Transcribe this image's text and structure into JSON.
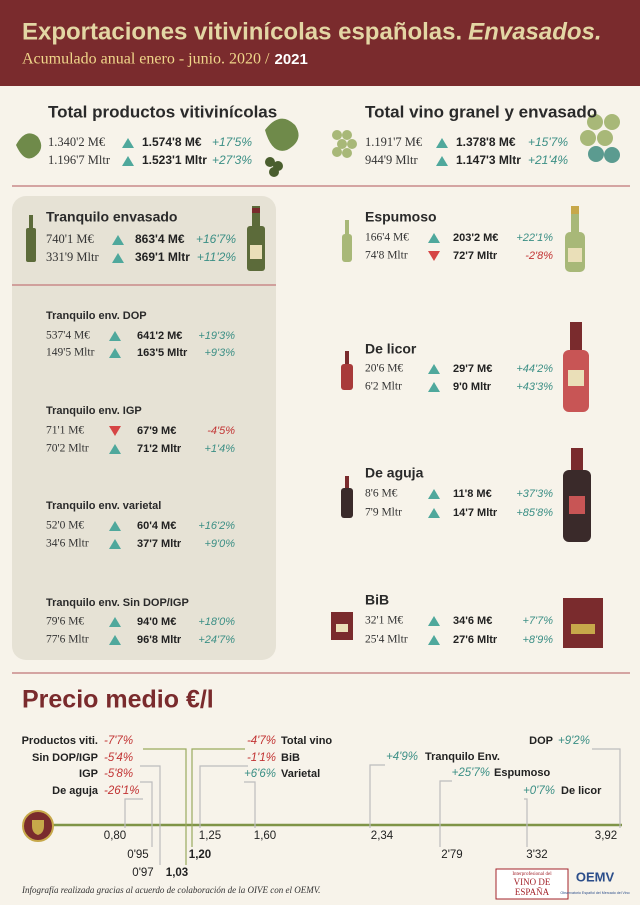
{
  "header": {
    "title": "Exportaciones vitivinícolas españolas.",
    "title_emphasis": "Envasados.",
    "subtitle": "Acumulado anual enero - junio. 2020 /",
    "subtitle_year": "2021"
  },
  "blocks": [
    {
      "title": "Total productos vitivinícolas",
      "rows": [
        {
          "previous": "1.340'2 M€",
          "current": "1.574'8 M€",
          "change": "+17'5%"
        },
        {
          "previous": "1.196'7 Mltr",
          "current": "1.523'1 Mltr",
          "change": "+27'3%"
        }
      ]
    },
    {
      "title": "Total vino granel y envasado",
      "rows": [
        {
          "previous": "1.191'7 M€",
          "current": "1.378'8 M€",
          "change": "+15'7%"
        },
        {
          "previous": "944'9 Mltr",
          "current": "1.147'3 Mltr",
          "change": "+21'4%"
        }
      ]
    },
    {
      "title": "Tranquilo envasado",
      "rows": [
        {
          "previous": "740'1 M€",
          "current": "863'4 M€",
          "change": "+16'7%"
        },
        {
          "previous": "331'9 Mltr",
          "current": "369'1 Mltr",
          "change": "+11'2%"
        }
      ]
    },
    {
      "title": "Tranquilo env. DOP",
      "rows": [
        {
          "previous": "537'4 M€",
          "current": "641'2 M€",
          "change": "+19'3%"
        },
        {
          "previous": "149'5 Mltr",
          "current": "163'5 Mltr",
          "change": "+9'3%"
        }
      ]
    },
    {
      "title": "Tranquilo env. IGP",
      "rows": [
        {
          "previous": "71'1 M€",
          "current": "67'9 M€",
          "change": "-4'5%"
        },
        {
          "previous": "70'2 Mltr",
          "current": "71'2 Mltr",
          "change": "+1'4%"
        }
      ]
    },
    {
      "title": "Tranquilo env. varietal",
      "rows": [
        {
          "previous": "52'0 M€",
          "current": "60'4 M€",
          "change": "+16'2%"
        },
        {
          "previous": "34'6 Mltr",
          "current": "37'7 Mltr",
          "change": "+9'0%"
        }
      ]
    },
    {
      "title": "Tranquilo env. Sin DOP/IGP",
      "rows": [
        {
          "previous": "79'6 M€",
          "current": "94'0 M€",
          "change": "+18'0%"
        },
        {
          "previous": "77'6 Mltr",
          "current": "96'8 Mltr",
          "change": "+24'7%"
        }
      ]
    },
    {
      "title": "Espumoso",
      "rows": [
        {
          "previous": "166'4 M€",
          "current": "203'2 M€",
          "change": "+22'1%"
        },
        {
          "previous": "74'8 Mltr",
          "current": "72'7 Mltr",
          "change": "-2'8%"
        }
      ]
    },
    {
      "title": "De licor",
      "rows": [
        {
          "previous": "20'6 M€",
          "current": "29'7 M€",
          "change": "+44'2%"
        },
        {
          "previous": "6'2 Mltr",
          "current": "9'0 Mltr",
          "change": "+43'3%"
        }
      ]
    },
    {
      "title": "De aguja",
      "rows": [
        {
          "previous": "8'6 M€",
          "current": "11'8 M€",
          "change": "+37'3%"
        },
        {
          "previous": "7'9 Mltr",
          "current": "14'7 Mltr",
          "change": "+85'8%"
        }
      ]
    },
    {
      "title": "BiB",
      "rows": [
        {
          "previous": "32'1 M€",
          "current": "34'6 M€",
          "change": "+7'7%"
        },
        {
          "previous": "25'4 Mltr",
          "current": "27'6 Mltr",
          "change": "+8'9%"
        }
      ]
    }
  ],
  "price": {
    "title": "Precio medio €/l",
    "items": [
      {
        "name": "Productos viti.",
        "change": "-7'7%",
        "price": "1,03"
      },
      {
        "name": "Sin DOP/IGP",
        "change": "-5'4%",
        "price": "0'97"
      },
      {
        "name": "IGP",
        "change": "-5'8%",
        "price": "0'95"
      },
      {
        "name": "De aguja",
        "change": "-26'1%",
        "price": "0,80"
      },
      {
        "name": "Total vino",
        "change": "-4'7%",
        "price": "1,20"
      },
      {
        "name": "BiB",
        "change": "-1'1%",
        "price": "1,25"
      },
      {
        "name": "Varietal",
        "change": "+6'6%",
        "price": "1,60"
      },
      {
        "name": "Tranquilo Env.",
        "change": "+4'9%",
        "price": "2,34"
      },
      {
        "name": "Espumoso",
        "change": "+25'7%",
        "price": "2'79"
      },
      {
        "name": "DOP",
        "change": "+9'2%",
        "price": "3,92"
      },
      {
        "name": "De licor",
        "change": "+0'7%",
        "price": "3'32"
      }
    ]
  },
  "footer": {
    "note": "Infografía realizada gracias al acuerdo de colaboración de la OIVE con el OEMV.",
    "logo_oive_top": "Interprofesional del",
    "logo_oive_mid": "VINO DE",
    "logo_oive_bottom": "ESPAÑA",
    "logo_oemv": "OEMV",
    "logo_oemv_sub": "Observatorio Español del Mercado del Vino"
  }
}
